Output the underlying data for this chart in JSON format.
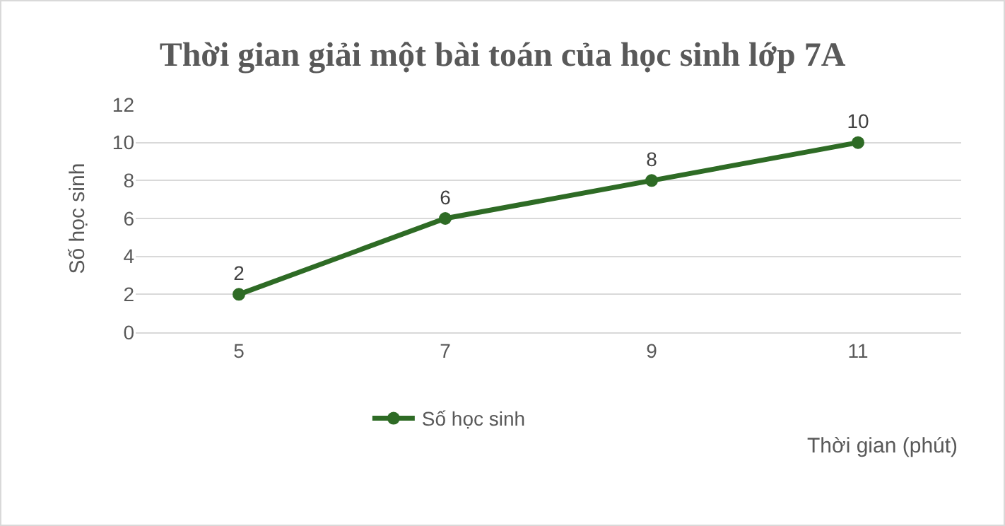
{
  "chart_data": {
    "type": "line",
    "title": "Thời gian giải một bài toán của học sinh lớp 7A",
    "xlabel": "Thời gian (phút)",
    "ylabel": "Số học sinh",
    "categories": [
      "5",
      "7",
      "9",
      "11"
    ],
    "series": [
      {
        "name": "Số học sinh",
        "color": "#2e6b25",
        "values": [
          2,
          6,
          8,
          10
        ]
      }
    ],
    "ylim": [
      0,
      12
    ],
    "yticks": [
      0,
      2,
      4,
      6,
      8,
      10,
      12
    ],
    "grid": "y",
    "legend": "bottom",
    "marker": "circle",
    "line_style": "solid",
    "data_labels": true
  }
}
